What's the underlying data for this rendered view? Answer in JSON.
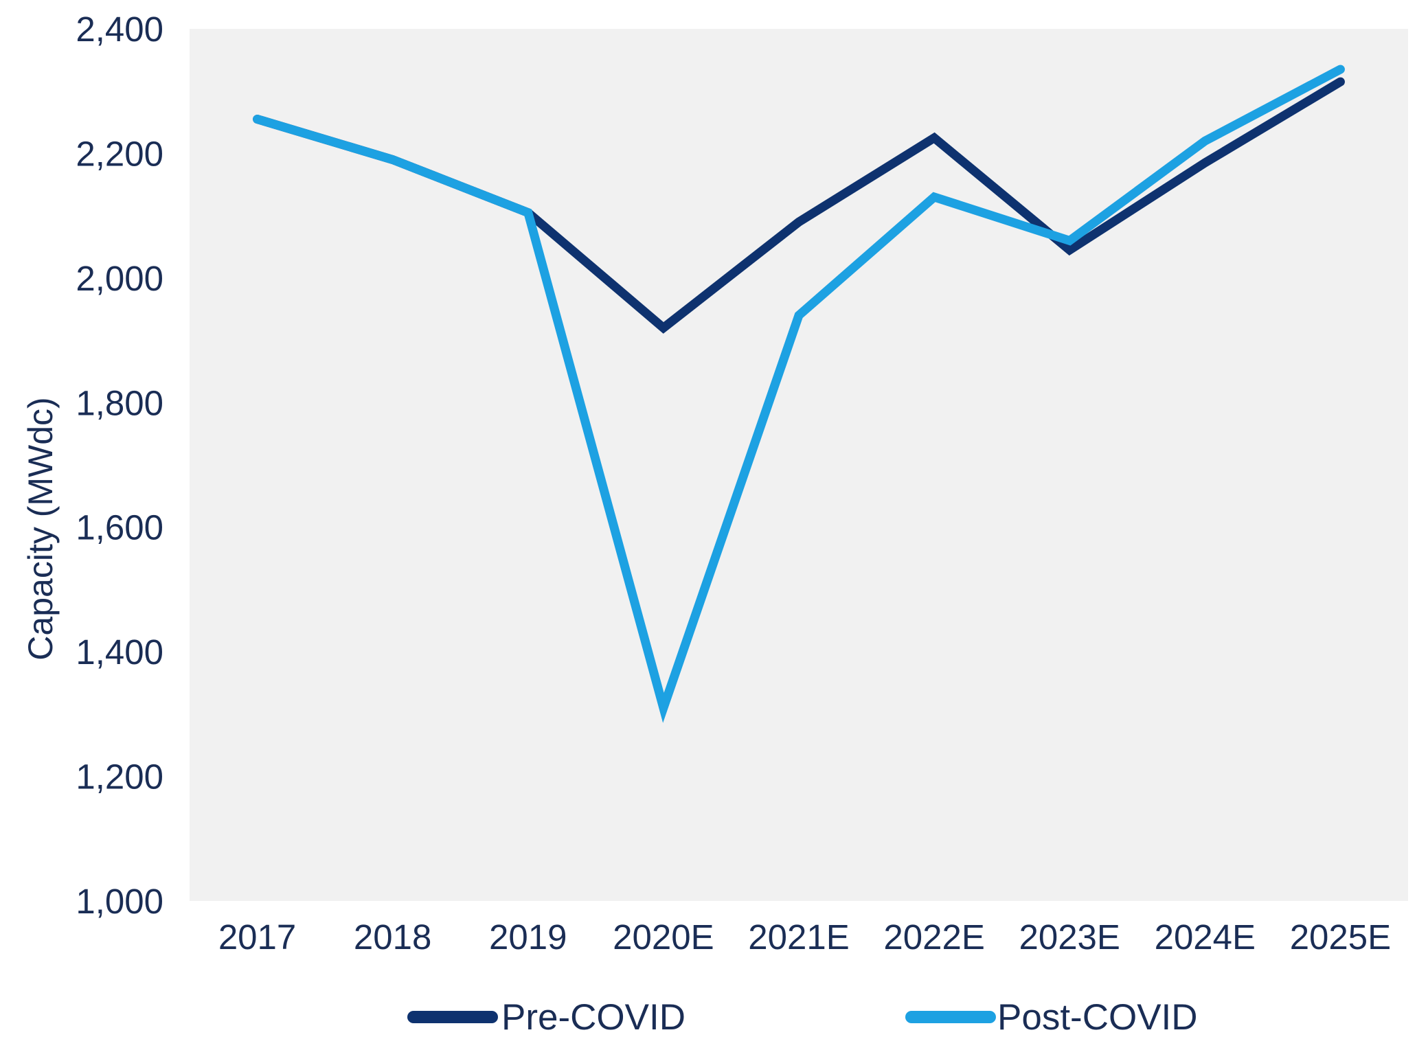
{
  "chart_data": {
    "type": "line",
    "title": "",
    "ylabel": "Capacity (MWdc)",
    "xlabel": "",
    "categories": [
      "2017",
      "2018",
      "2019",
      "2020E",
      "2021E",
      "2022E",
      "2023E",
      "2024E",
      "2025E"
    ],
    "series": [
      {
        "name": "Pre-COVID",
        "color": "#0e326f",
        "values": [
          2255,
          2190,
          2105,
          1920,
          2090,
          2225,
          2045,
          2185,
          2315
        ]
      },
      {
        "name": "Post-COVID",
        "color": "#1da1e2",
        "values": [
          2255,
          2190,
          2105,
          1310,
          1940,
          2130,
          2060,
          2220,
          2335
        ]
      }
    ],
    "y_axis": {
      "min": 1000,
      "max": 2400,
      "tick_step": 200,
      "ticks": [
        {
          "value": 2400,
          "label": "2,400"
        },
        {
          "value": 2200,
          "label": "2,200"
        },
        {
          "value": 2000,
          "label": "2,000"
        },
        {
          "value": 1800,
          "label": "1,800"
        },
        {
          "value": 1600,
          "label": "1,600"
        },
        {
          "value": 1400,
          "label": "1,400"
        },
        {
          "value": 1200,
          "label": "1,200"
        },
        {
          "value": 1000,
          "label": "1,000"
        }
      ]
    },
    "legend_position": "bottom",
    "gridlines": false,
    "plot_background": "#f1f1f1",
    "axis_text_color": "#1a2d55"
  }
}
